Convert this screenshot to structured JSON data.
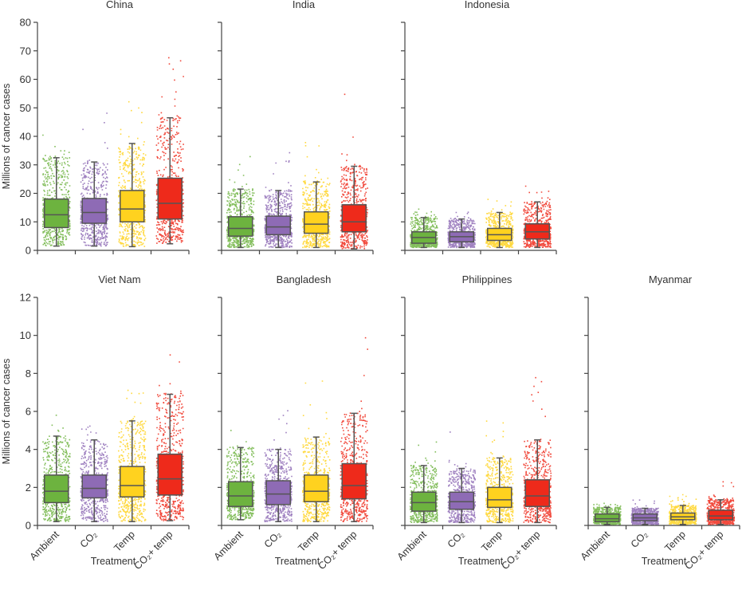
{
  "chart_data": {
    "type": "box-scatter",
    "y_label": "Millions of cancer cases",
    "x_label": "Treatment",
    "categories": [
      "Ambient",
      "CO₂",
      "Temp",
      "CO₂+ temp"
    ],
    "colors": [
      "#6db33f",
      "#8e6bb5",
      "#ffd21f",
      "#ee2a1b"
    ],
    "box_stroke": "#555555",
    "panels": [
      {
        "title": "China",
        "ylim": [
          0,
          80
        ],
        "yticks": [
          0,
          10,
          20,
          30,
          40,
          50,
          60,
          70,
          80
        ],
        "show_tick_labels": true,
        "groups": [
          {
            "lo": 1.5,
            "q1": 8,
            "median": 12.5,
            "q3": 18,
            "hi": 32.5,
            "max": 40.5
          },
          {
            "lo": 1.5,
            "q1": 9.5,
            "median": 13.3,
            "q3": 18.2,
            "hi": 31,
            "max": 49
          },
          {
            "lo": 1.3,
            "q1": 10,
            "median": 14.5,
            "q3": 21,
            "hi": 37.5,
            "max": 53
          },
          {
            "lo": 2.3,
            "q1": 11,
            "median": 16.5,
            "q3": 25.3,
            "hi": 46.5,
            "max": 72
          }
        ]
      },
      {
        "title": "India",
        "ylim": [
          0,
          80
        ],
        "yticks": [
          0,
          10,
          20,
          30,
          40,
          50,
          60,
          70,
          80
        ],
        "show_tick_labels": false,
        "groups": [
          {
            "lo": 1,
            "q1": 5,
            "median": 7.7,
            "q3": 11.8,
            "hi": 21.5,
            "max": 34
          },
          {
            "lo": 1,
            "q1": 5.5,
            "median": 8.2,
            "q3": 12,
            "hi": 21,
            "max": 35
          },
          {
            "lo": 1,
            "q1": 6,
            "median": 9.2,
            "q3": 13.5,
            "hi": 24,
            "max": 38
          },
          {
            "lo": 0.5,
            "q1": 6.5,
            "median": 10,
            "q3": 16,
            "hi": 29.5,
            "max": 61
          }
        ]
      },
      {
        "title": "Indonesia",
        "ylim": [
          0,
          80
        ],
        "yticks": [
          0,
          10,
          20,
          30,
          40,
          50,
          60,
          70,
          80
        ],
        "show_tick_labels": false,
        "groups": [
          {
            "lo": 1,
            "q1": 2.5,
            "median": 4.5,
            "q3": 6.5,
            "hi": 11.5,
            "max": 14.5
          },
          {
            "lo": 1,
            "q1": 3,
            "median": 4.8,
            "q3": 6.5,
            "hi": 11,
            "max": 13.5
          },
          {
            "lo": 1,
            "q1": 3.5,
            "median": 5.5,
            "q3": 7.7,
            "hi": 13.3,
            "max": 18
          },
          {
            "lo": 1,
            "q1": 4,
            "median": 6.5,
            "q3": 9.3,
            "hi": 17,
            "max": 24.5
          }
        ]
      },
      {
        "title": "Viet Nam",
        "ylim": [
          0,
          12
        ],
        "yticks": [
          0,
          2,
          4,
          6,
          8,
          10,
          12
        ],
        "show_tick_labels": true,
        "groups": [
          {
            "lo": 0.2,
            "q1": 1.2,
            "median": 1.8,
            "q3": 2.65,
            "hi": 4.7,
            "max": 5.8
          },
          {
            "lo": 0.2,
            "q1": 1.45,
            "median": 1.95,
            "q3": 2.65,
            "hi": 4.5,
            "max": 5.8
          },
          {
            "lo": 0.2,
            "q1": 1.5,
            "median": 2.1,
            "q3": 3.1,
            "hi": 5.5,
            "max": 7.4
          },
          {
            "lo": 0.25,
            "q1": 1.6,
            "median": 2.45,
            "q3": 3.75,
            "hi": 6.9,
            "max": 9.4
          }
        ]
      },
      {
        "title": "Bangladesh",
        "ylim": [
          0,
          12
        ],
        "yticks": [
          0,
          2,
          4,
          6,
          8,
          10,
          12
        ],
        "show_tick_labels": false,
        "groups": [
          {
            "lo": 0.3,
            "q1": 1.0,
            "median": 1.55,
            "q3": 2.3,
            "hi": 4.1,
            "max": 5.7
          },
          {
            "lo": 0.2,
            "q1": 1.1,
            "median": 1.65,
            "q3": 2.35,
            "hi": 4.0,
            "max": 6.2
          },
          {
            "lo": 0.2,
            "q1": 1.25,
            "median": 1.8,
            "q3": 2.65,
            "hi": 4.65,
            "max": 7.6
          },
          {
            "lo": 0.2,
            "q1": 1.4,
            "median": 2.1,
            "q3": 3.25,
            "hi": 5.9,
            "max": 9.9
          }
        ]
      },
      {
        "title": "Philippines",
        "ylim": [
          0,
          12
        ],
        "yticks": [
          0,
          2,
          4,
          6,
          8,
          10,
          12
        ],
        "show_tick_labels": false,
        "groups": [
          {
            "lo": 0.15,
            "q1": 0.75,
            "median": 1.2,
            "q3": 1.75,
            "hi": 3.15,
            "max": 4.4
          },
          {
            "lo": 0.15,
            "q1": 0.85,
            "median": 1.25,
            "q3": 1.75,
            "hi": 3.0,
            "max": 5.2
          },
          {
            "lo": 0.15,
            "q1": 0.95,
            "median": 1.35,
            "q3": 2.0,
            "hi": 3.55,
            "max": 6.1
          },
          {
            "lo": 0.15,
            "q1": 1.0,
            "median": 1.55,
            "q3": 2.4,
            "hi": 4.5,
            "max": 8.2
          }
        ]
      },
      {
        "title": "Myanmar",
        "ylim": [
          0,
          12
        ],
        "yticks": [
          0,
          2,
          4,
          6,
          8,
          10,
          12
        ],
        "show_tick_labels": false,
        "groups": [
          {
            "lo": 0.05,
            "q1": 0.2,
            "median": 0.35,
            "q3": 0.6,
            "hi": 0.95,
            "max": 1.2
          },
          {
            "lo": 0.05,
            "q1": 0.25,
            "median": 0.4,
            "q3": 0.6,
            "hi": 0.9,
            "max": 1.4
          },
          {
            "lo": 0.05,
            "q1": 0.3,
            "median": 0.45,
            "q3": 0.65,
            "hi": 1.05,
            "max": 1.7
          },
          {
            "lo": 0.05,
            "q1": 0.3,
            "median": 0.5,
            "q3": 0.8,
            "hi": 1.35,
            "max": 2.3
          }
        ]
      }
    ]
  }
}
